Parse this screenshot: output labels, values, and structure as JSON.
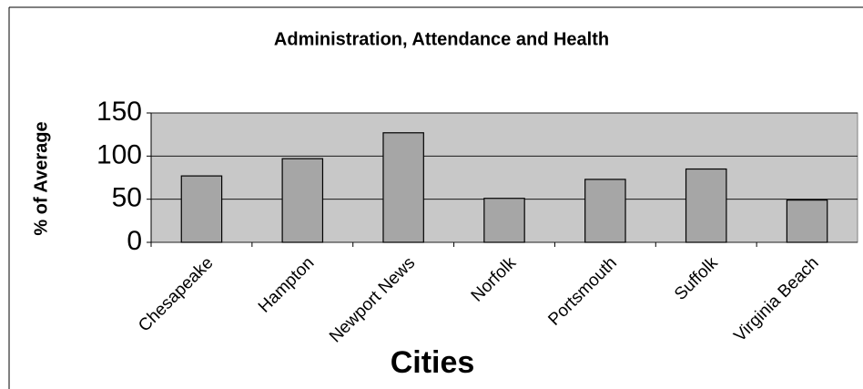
{
  "chart_data": {
    "type": "bar",
    "title": "Administration, Attendance and Health",
    "x_label": "Cities",
    "y_label": "% of Average",
    "categories": [
      "Chesapeake",
      "Hampton",
      "Newport News",
      "Norfolk",
      "Portsmouth",
      "Suffolk",
      "Virginia Beach"
    ],
    "values": [
      77,
      97,
      127,
      51,
      73,
      85,
      49
    ],
    "color": "#a6a6a6",
    "ylim": [
      0,
      150
    ],
    "yticks": [
      0,
      50,
      100,
      150
    ],
    "grid": true
  }
}
